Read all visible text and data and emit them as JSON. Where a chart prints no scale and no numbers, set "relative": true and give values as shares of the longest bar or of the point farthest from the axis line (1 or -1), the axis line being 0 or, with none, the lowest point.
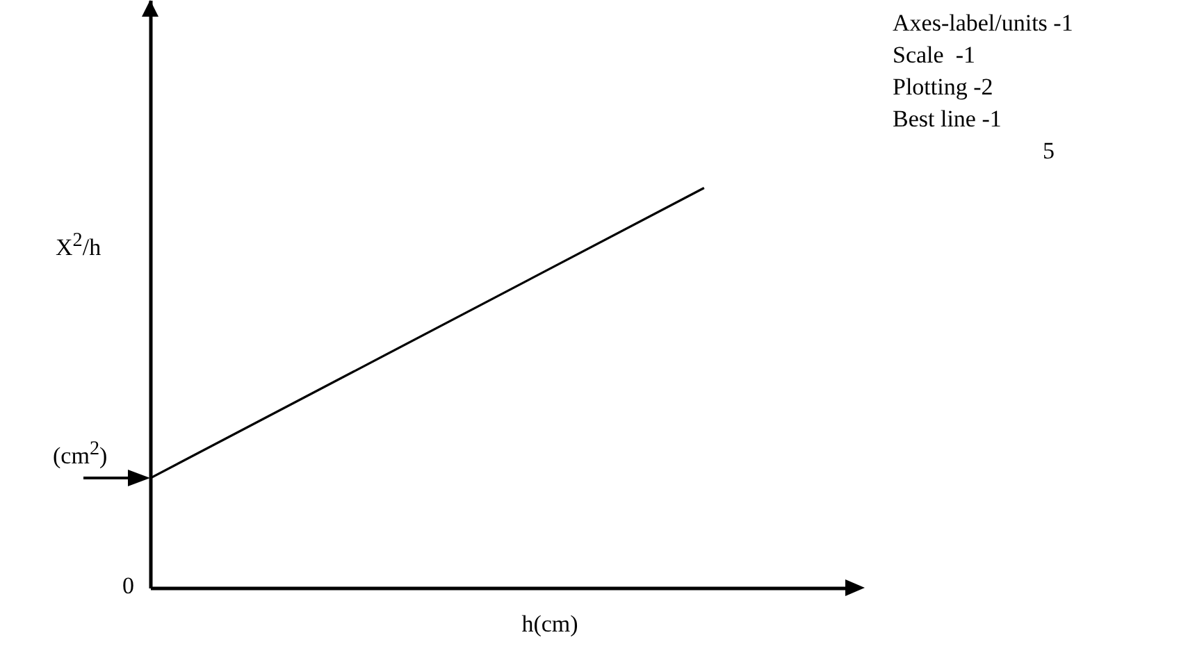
{
  "chart_data": {
    "type": "line",
    "relative": true,
    "categories": [
      null,
      null
    ],
    "series": [
      {
        "color": "#000000",
        "values": [
          0.274,
          1
        ]
      }
    ],
    "xlabel": "h(cm)",
    "ylabel": "X$^{2}$/h",
    "annotations": [
      "(cm$^{2}$)",
      "0",
      "Axes-label/units -1",
      "Scale  -1",
      "Plotting -2",
      "Best line -1",
      "5"
    ]
  }
}
